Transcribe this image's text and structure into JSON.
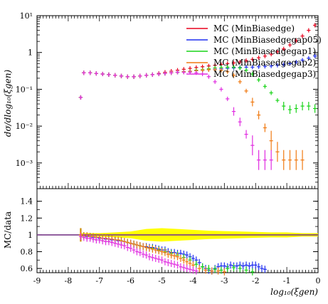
{
  "chart_data": [
    {
      "type": "scatter",
      "panel": "main",
      "ylabel": "dσ/dlog₁₀(ξgen)",
      "yscale": "log",
      "ylim": [
        0.0002,
        10
      ],
      "xlim": [
        -9,
        0
      ],
      "yticks": [
        {
          "value": 10,
          "label": "10¹"
        },
        {
          "value": 1,
          "label": "1"
        },
        {
          "value": 0.1,
          "label": "10⁻¹"
        },
        {
          "value": 0.01,
          "label": "10⁻²"
        },
        {
          "value": 0.001,
          "label": "10⁻³"
        }
      ],
      "legend_position": "top-right",
      "series": [
        {
          "name": "MC (MinBiasedge)",
          "color": "#e8001c",
          "x": [
            -7.6,
            -7.5,
            -7.3,
            -7.1,
            -6.9,
            -6.7,
            -6.5,
            -6.3,
            -6.1,
            -5.9,
            -5.7,
            -5.5,
            -5.3,
            -5.1,
            -4.9,
            -4.7,
            -4.5,
            -4.3,
            -4.1,
            -3.9,
            -3.7,
            -3.5,
            -3.3,
            -3.1,
            -2.9,
            -2.7,
            -2.5,
            -2.3,
            -2.1,
            -1.9,
            -1.7,
            -1.5,
            -1.3,
            -1.1,
            -0.9,
            -0.7,
            -0.5,
            -0.3,
            -0.1
          ],
          "y": [
            0.06,
            0.28,
            0.28,
            0.27,
            0.26,
            0.25,
            0.24,
            0.23,
            0.22,
            0.22,
            0.23,
            0.24,
            0.25,
            0.27,
            0.29,
            0.31,
            0.33,
            0.35,
            0.37,
            0.39,
            0.41,
            0.43,
            0.45,
            0.47,
            0.5,
            0.52,
            0.55,
            0.6,
            0.65,
            0.72,
            0.8,
            0.9,
            1.05,
            1.25,
            1.6,
            2.1,
            2.8,
            4.0,
            5.5
          ]
        },
        {
          "name": "MC (MinBiasedgegap05)",
          "color": "#1f2ef0",
          "x": [
            -7.6,
            -7.5,
            -7.3,
            -7.1,
            -6.9,
            -6.7,
            -6.5,
            -6.3,
            -6.1,
            -5.9,
            -5.7,
            -5.5,
            -5.3,
            -5.1,
            -4.9,
            -4.7,
            -4.5,
            -4.3,
            -4.1,
            -3.9,
            -3.7,
            -3.5,
            -3.3,
            -3.1,
            -2.9,
            -2.7,
            -2.5,
            -2.3,
            -2.1,
            -1.9,
            -1.7,
            -1.5,
            -1.3,
            -1.1,
            -0.9,
            -0.7,
            -0.5,
            -0.3,
            -0.1
          ],
          "y": [
            0.06,
            0.28,
            0.28,
            0.27,
            0.26,
            0.25,
            0.24,
            0.23,
            0.22,
            0.22,
            0.23,
            0.24,
            0.25,
            0.26,
            0.27,
            0.28,
            0.29,
            0.3,
            0.31,
            0.32,
            0.33,
            0.34,
            0.35,
            0.36,
            0.37,
            0.38,
            0.39,
            0.4,
            0.4,
            0.41,
            0.42,
            0.43,
            0.45,
            0.47,
            0.5,
            0.55,
            0.62,
            0.7,
            0.8
          ]
        },
        {
          "name": "MC (MinBiasedgegap1)",
          "color": "#19d419",
          "x": [
            -7.6,
            -7.5,
            -7.3,
            -7.1,
            -6.9,
            -6.7,
            -6.5,
            -6.3,
            -6.1,
            -5.9,
            -5.7,
            -5.5,
            -5.3,
            -5.1,
            -4.9,
            -4.7,
            -4.5,
            -4.3,
            -4.1,
            -3.9,
            -3.7,
            -3.5,
            -3.3,
            -3.1,
            -2.9,
            -2.7,
            -2.5,
            -2.3,
            -2.1,
            -1.9,
            -1.7,
            -1.5,
            -1.3,
            -1.1,
            -0.9,
            -0.7,
            -0.5,
            -0.3,
            -0.1
          ],
          "y": [
            0.06,
            0.28,
            0.28,
            0.27,
            0.26,
            0.25,
            0.24,
            0.23,
            0.22,
            0.22,
            0.23,
            0.24,
            0.25,
            0.26,
            0.27,
            0.28,
            0.29,
            0.3,
            0.31,
            0.33,
            0.34,
            0.36,
            0.38,
            0.39,
            0.4,
            0.4,
            0.38,
            0.33,
            0.26,
            0.18,
            0.12,
            0.08,
            0.05,
            0.035,
            0.028,
            0.03,
            0.035,
            0.035,
            0.03
          ]
        },
        {
          "name": "MC (MinBiasedgegap2)",
          "color": "#f07a12",
          "x": [
            -7.6,
            -7.5,
            -7.3,
            -7.1,
            -6.9,
            -6.7,
            -6.5,
            -6.3,
            -6.1,
            -5.9,
            -5.7,
            -5.5,
            -5.3,
            -5.1,
            -4.9,
            -4.7,
            -4.5,
            -4.3,
            -4.1,
            -3.9,
            -3.7,
            -3.5,
            -3.3,
            -3.1,
            -2.9,
            -2.7,
            -2.5,
            -2.3,
            -2.1,
            -1.9,
            -1.7,
            -1.5,
            -1.3,
            -1.1,
            -0.9,
            -0.7,
            -0.5
          ],
          "y": [
            0.06,
            0.28,
            0.28,
            0.27,
            0.26,
            0.25,
            0.24,
            0.23,
            0.22,
            0.22,
            0.23,
            0.24,
            0.25,
            0.26,
            0.27,
            0.28,
            0.29,
            0.3,
            0.31,
            0.32,
            0.33,
            0.34,
            0.34,
            0.33,
            0.3,
            0.24,
            0.16,
            0.09,
            0.045,
            0.02,
            0.009,
            0.004,
            0.002,
            0.0012,
            0.0012,
            0.0012,
            0.0012
          ]
        },
        {
          "name": "MC (MinBiasedgegap3)",
          "color": "#e12ee1",
          "x": [
            -7.6,
            -7.5,
            -7.3,
            -7.1,
            -6.9,
            -6.7,
            -6.5,
            -6.3,
            -6.1,
            -5.9,
            -5.7,
            -5.5,
            -5.3,
            -5.1,
            -4.9,
            -4.7,
            -4.5,
            -4.3,
            -4.1,
            -3.9,
            -3.7,
            -3.5,
            -3.3,
            -3.1,
            -2.9,
            -2.7,
            -2.5,
            -2.3,
            -2.1,
            -1.9,
            -1.7,
            -1.5
          ],
          "y": [
            0.06,
            0.28,
            0.28,
            0.27,
            0.26,
            0.25,
            0.24,
            0.23,
            0.22,
            0.22,
            0.23,
            0.24,
            0.25,
            0.26,
            0.27,
            0.28,
            0.29,
            0.29,
            0.29,
            0.28,
            0.26,
            0.22,
            0.16,
            0.1,
            0.055,
            0.025,
            0.013,
            0.006,
            0.003,
            0.0012,
            0.0012,
            0.0012
          ]
        }
      ]
    },
    {
      "type": "scatter",
      "panel": "ratio",
      "ylabel": "MC/data",
      "xlabel": "log₁₀(ξgen)",
      "ylim": [
        0.55,
        1.55
      ],
      "xlim": [
        -9,
        0
      ],
      "xticks": [
        -9,
        -8,
        -7,
        -6,
        -5,
        -4,
        -3,
        -2,
        -1,
        0
      ],
      "yticks": [
        {
          "value": 0.6,
          "label": "0.6"
        },
        {
          "value": 0.8,
          "label": "0.8"
        },
        {
          "value": 1,
          "label": "1"
        },
        {
          "value": 1.2,
          "label": "1.2"
        },
        {
          "value": 1.4,
          "label": "1.4"
        }
      ],
      "reference": {
        "y": 1.0,
        "band_color": "#ffff00",
        "band_x": [
          -7.6,
          -7.0,
          -6.5,
          -6.0,
          -5.5,
          -5.0,
          -4.5,
          -4.0,
          -3.5,
          -3.0,
          -2.5,
          -2.0,
          -1.5,
          -1.0,
          -0.5,
          0.0
        ],
        "band_half_width": [
          0.02,
          0.02,
          0.03,
          0.04,
          0.07,
          0.08,
          0.07,
          0.06,
          0.05,
          0.045,
          0.04,
          0.035,
          0.03,
          0.03,
          0.02,
          0.02
        ]
      },
      "series": [
        {
          "name": "MC (MinBiasedgegap05)",
          "color": "#1f2ef0",
          "x": [
            -7.5,
            -7.4,
            -7.3,
            -7.2,
            -7.1,
            -7.0,
            -6.9,
            -6.8,
            -6.7,
            -6.6,
            -6.5,
            -6.4,
            -6.3,
            -6.2,
            -6.1,
            -6.0,
            -5.9,
            -5.8,
            -5.7,
            -5.6,
            -5.5,
            -5.4,
            -5.3,
            -5.2,
            -5.1,
            -5.0,
            -4.9,
            -4.8,
            -4.7,
            -4.6,
            -4.5,
            -4.4,
            -4.3,
            -4.2,
            -4.1,
            -4.0,
            -3.9,
            -3.8,
            -3.7,
            -3.6,
            -3.5,
            -3.4,
            -3.3,
            -3.2,
            -3.1,
            -3.0,
            -2.9,
            -2.8,
            -2.7,
            -2.6,
            -2.5,
            -2.4,
            -2.3,
            -2.2,
            -2.1,
            -2.0,
            -1.9,
            -1.8,
            -1.7
          ],
          "y": [
            0.99,
            0.98,
            0.98,
            0.97,
            0.97,
            0.96,
            0.96,
            0.95,
            0.95,
            0.94,
            0.94,
            0.93,
            0.93,
            0.92,
            0.91,
            0.9,
            0.89,
            0.88,
            0.87,
            0.86,
            0.86,
            0.85,
            0.85,
            0.84,
            0.83,
            0.82,
            0.82,
            0.8,
            0.79,
            0.79,
            0.78,
            0.78,
            0.77,
            0.76,
            0.74,
            0.72,
            0.7,
            0.67,
            0.62,
            0.6,
            0.58,
            0.57,
            0.6,
            0.62,
            0.63,
            0.63,
            0.62,
            0.64,
            0.63,
            0.63,
            0.64,
            0.63,
            0.64,
            0.63,
            0.64,
            0.64,
            0.62,
            0.6,
            0.59
          ]
        },
        {
          "name": "MC (MinBiasedgegap1)",
          "color": "#19d419",
          "x": [
            -7.5,
            -7.3,
            -7.1,
            -6.9,
            -6.7,
            -6.5,
            -6.3,
            -6.1,
            -5.9,
            -5.7,
            -5.5,
            -5.3,
            -5.1,
            -4.9,
            -4.7,
            -4.5,
            -4.3,
            -4.1,
            -3.9,
            -3.7,
            -3.5,
            -3.3,
            -3.1,
            -2.9,
            -2.7,
            -2.5,
            -2.3,
            -2.1
          ],
          "y": [
            0.99,
            0.98,
            0.97,
            0.96,
            0.95,
            0.94,
            0.93,
            0.91,
            0.89,
            0.87,
            0.85,
            0.84,
            0.82,
            0.8,
            0.78,
            0.76,
            0.73,
            0.7,
            0.65,
            0.62,
            0.6,
            0.59,
            0.58,
            0.6,
            0.61,
            0.6,
            0.58,
            0.56
          ]
        },
        {
          "name": "MC (MinBiasedgegap2)",
          "color": "#f07a12",
          "x": [
            -7.6,
            -7.5,
            -7.4,
            -7.3,
            -7.2,
            -7.1,
            -7.0,
            -6.9,
            -6.8,
            -6.7,
            -6.6,
            -6.5,
            -6.4,
            -6.3,
            -6.2,
            -6.1,
            -6.0,
            -5.9,
            -5.8,
            -5.7,
            -5.6,
            -5.5,
            -5.4,
            -5.3,
            -5.2,
            -5.1,
            -5.0,
            -4.9,
            -4.8,
            -4.7,
            -4.6,
            -4.5,
            -4.4,
            -4.3,
            -4.2,
            -4.1,
            -4.0,
            -3.8,
            -3.6,
            -3.4,
            -3.2,
            -3.0
          ],
          "y": [
            1.0,
            0.99,
            0.99,
            0.98,
            0.98,
            0.97,
            0.97,
            0.96,
            0.96,
            0.95,
            0.95,
            0.94,
            0.94,
            0.93,
            0.92,
            0.91,
            0.9,
            0.89,
            0.88,
            0.87,
            0.86,
            0.85,
            0.84,
            0.83,
            0.82,
            0.81,
            0.8,
            0.79,
            0.77,
            0.76,
            0.75,
            0.74,
            0.72,
            0.7,
            0.68,
            0.66,
            0.64,
            0.6,
            0.58,
            0.57,
            0.57,
            0.56
          ]
        },
        {
          "name": "MC (MinBiasedgegap3)",
          "color": "#e12ee1",
          "x": [
            -7.6,
            -7.5,
            -7.4,
            -7.3,
            -7.2,
            -7.1,
            -7.0,
            -6.9,
            -6.8,
            -6.7,
            -6.6,
            -6.5,
            -6.4,
            -6.3,
            -6.2,
            -6.1,
            -6.0,
            -5.9,
            -5.8,
            -5.7,
            -5.6,
            -5.5,
            -5.4,
            -5.3,
            -5.2,
            -5.1,
            -5.0,
            -4.9,
            -4.8,
            -4.7,
            -4.6,
            -4.5,
            -4.4,
            -4.3,
            -4.2,
            -4.1,
            -4.0,
            -3.9
          ],
          "y": [
            0.98,
            0.97,
            0.96,
            0.96,
            0.95,
            0.94,
            0.94,
            0.93,
            0.92,
            0.92,
            0.91,
            0.9,
            0.89,
            0.88,
            0.87,
            0.85,
            0.84,
            0.82,
            0.8,
            0.79,
            0.77,
            0.76,
            0.74,
            0.73,
            0.72,
            0.71,
            0.7,
            0.68,
            0.67,
            0.66,
            0.65,
            0.64,
            0.62,
            0.61,
            0.6,
            0.59,
            0.58,
            0.57
          ]
        }
      ]
    }
  ]
}
